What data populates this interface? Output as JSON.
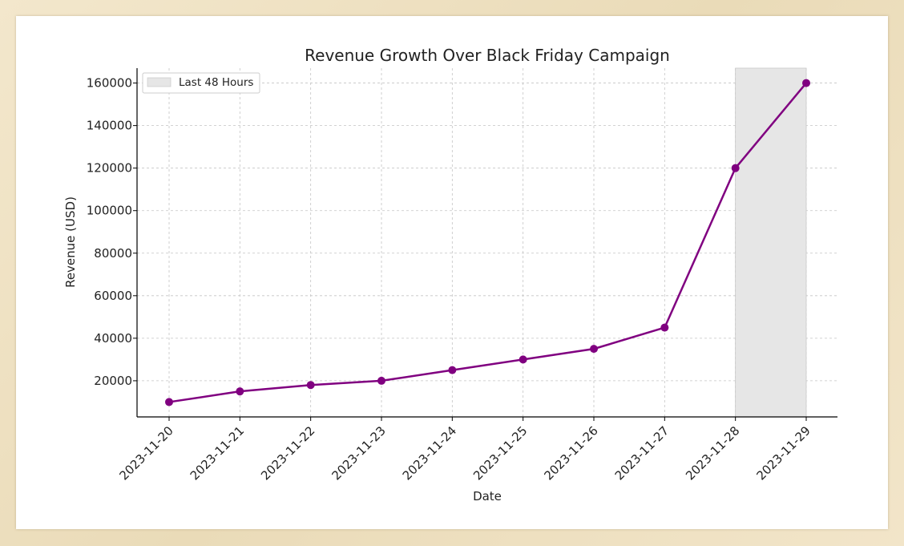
{
  "chart_data": {
    "type": "line",
    "title": "Revenue Growth Over Black Friday Campaign",
    "xlabel": "Date",
    "ylabel": "Revenue (USD)",
    "x": [
      "2023-11-20",
      "2023-11-21",
      "2023-11-22",
      "2023-11-23",
      "2023-11-24",
      "2023-11-25",
      "2023-11-26",
      "2023-11-27",
      "2023-11-28",
      "2023-11-29"
    ],
    "series": [
      {
        "values": [
          10000,
          15000,
          18000,
          20000,
          25000,
          30000,
          35000,
          45000,
          120000,
          160000
        ],
        "color": "#800080"
      }
    ],
    "ylim": [
      3000,
      167000
    ],
    "yticks": [
      20000,
      40000,
      60000,
      80000,
      100000,
      120000,
      140000,
      160000
    ],
    "grid": true,
    "shaded_region": {
      "label": "Last 48 Hours",
      "start": "2023-11-28",
      "end": "2023-11-29",
      "color": "#e6e6e6"
    },
    "legend": {
      "position": "top-left",
      "entries": [
        "Last 48 Hours"
      ]
    }
  }
}
